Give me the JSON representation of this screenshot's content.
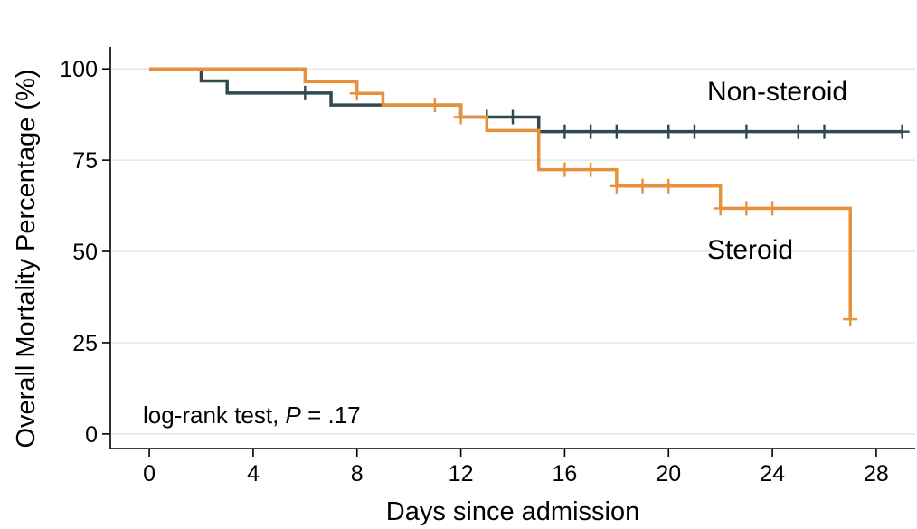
{
  "chart_data": {
    "type": "line",
    "xlabel": "Days since admission",
    "ylabel": "Overall Mortality Percentage (%)",
    "xlim": [
      -1.5,
      29.5
    ],
    "ylim": [
      -4,
      106
    ],
    "x_ticks": [
      0,
      4,
      8,
      12,
      16,
      20,
      24,
      28
    ],
    "y_ticks": [
      0,
      25,
      50,
      75,
      100
    ],
    "grid": "horizontal",
    "annotation": {
      "text": "log-rank test, ",
      "p_symbol": "P",
      "p_value": " = .17"
    },
    "series": [
      {
        "name": "Non-steroid",
        "color": "#2f4a4f",
        "steps": [
          [
            0,
            100
          ],
          [
            2,
            96.7
          ],
          [
            3,
            93.4
          ],
          [
            7,
            90.1
          ],
          [
            9,
            90.1
          ],
          [
            12,
            86.8
          ],
          [
            15,
            82.8
          ],
          [
            29,
            82.8
          ]
        ],
        "censored": [
          [
            6,
            93.4
          ],
          [
            13,
            86.8
          ],
          [
            14,
            86.8
          ],
          [
            16,
            82.8
          ],
          [
            17,
            82.8
          ],
          [
            18,
            82.8
          ],
          [
            20,
            82.8
          ],
          [
            21,
            82.8
          ],
          [
            23,
            82.8
          ],
          [
            25,
            82.8
          ],
          [
            26,
            82.8
          ],
          [
            29,
            82.8
          ]
        ]
      },
      {
        "name": "Steroid",
        "color": "#e8913c",
        "steps": [
          [
            0,
            100
          ],
          [
            6,
            96.5
          ],
          [
            8,
            93.3
          ],
          [
            9,
            90.1
          ],
          [
            12,
            86.8
          ],
          [
            13,
            83.1
          ],
          [
            15,
            72.4
          ],
          [
            18,
            67.9
          ],
          [
            22,
            61.8
          ],
          [
            27,
            31.4
          ]
        ],
        "censored": [
          [
            8,
            93.3
          ],
          [
            11,
            90.1
          ],
          [
            12,
            86.8
          ],
          [
            16,
            72.4
          ],
          [
            17,
            72.4
          ],
          [
            18,
            67.9
          ],
          [
            19,
            67.9
          ],
          [
            20,
            67.9
          ],
          [
            22,
            61.8
          ],
          [
            23,
            61.8
          ],
          [
            24,
            61.8
          ],
          [
            27,
            31.4
          ]
        ]
      }
    ]
  }
}
